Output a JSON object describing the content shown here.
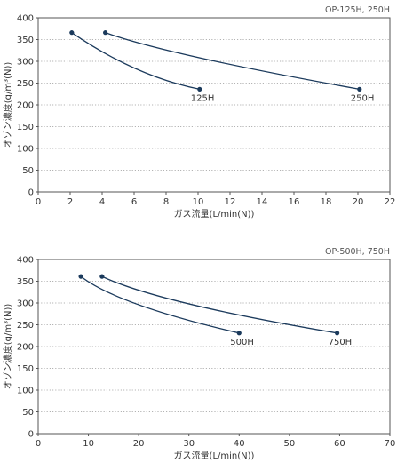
{
  "chart_data": [
    {
      "type": "line",
      "title": "OP-125H, 250H",
      "xlabel": "ガス流量(L/min(N))",
      "ylabel": "オゾン濃度(g/m³(N))",
      "xlim": [
        0,
        22
      ],
      "ylim": [
        0,
        400
      ],
      "xticks": [
        0,
        2,
        4,
        6,
        8,
        10,
        12,
        14,
        16,
        18,
        20,
        22
      ],
      "yticks": [
        0,
        50,
        100,
        150,
        200,
        250,
        300,
        350,
        400
      ],
      "grid": "horizontal-dotted",
      "line_color": "#1b3a5c",
      "series": [
        {
          "name": "125H",
          "points": [
            [
              2.1,
              366
            ],
            [
              6.1,
              283
            ],
            [
              10.1,
              236
            ]
          ]
        },
        {
          "name": "250H",
          "points": [
            [
              4.2,
              366
            ],
            [
              10.1,
              308
            ],
            [
              20.1,
              236
            ]
          ]
        }
      ]
    },
    {
      "type": "line",
      "title": "OP-500H, 750H",
      "xlabel": "ガス流量(L/min(N))",
      "ylabel": "オゾン濃度(g/m³(N))",
      "xlim": [
        0,
        70
      ],
      "ylim": [
        0,
        400
      ],
      "xticks": [
        0,
        10,
        20,
        30,
        40,
        50,
        60,
        70
      ],
      "yticks": [
        0,
        50,
        100,
        150,
        200,
        250,
        300,
        350,
        400
      ],
      "grid": "horizontal-dotted",
      "line_color": "#1b3a5c",
      "series": [
        {
          "name": "500H",
          "points": [
            [
              8.5,
              361
            ],
            [
              20,
              296
            ],
            [
              40,
              231
            ]
          ]
        },
        {
          "name": "750H",
          "points": [
            [
              12.7,
              361
            ],
            [
              30,
              298
            ],
            [
              59.5,
              231
            ]
          ]
        }
      ]
    }
  ]
}
